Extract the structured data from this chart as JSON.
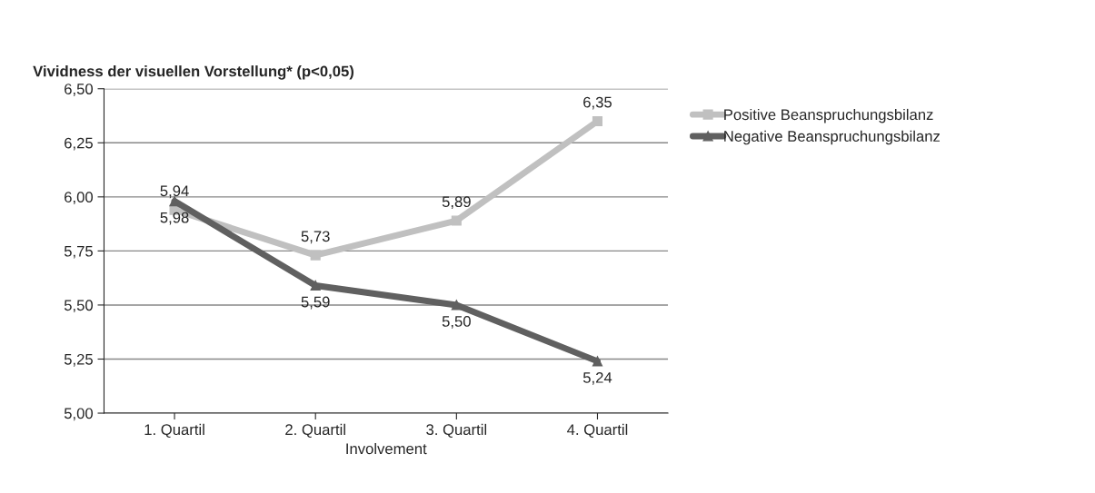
{
  "chart_data": {
    "type": "line",
    "title": "Vividness der visuellen Vorstellung* (p<0,05)",
    "xlabel": "Involvement",
    "categories": [
      "1. Quartil",
      "2. Quartil",
      "3. Quartil",
      "4. Quartil"
    ],
    "series": [
      {
        "name": "Positive Beanspruchungsbilanz",
        "color": "#c0c0c0",
        "marker": "square",
        "values": [
          5.94,
          5.73,
          5.89,
          6.35
        ],
        "value_labels": [
          "5,94",
          "5,73",
          "5,89",
          "6,35"
        ]
      },
      {
        "name": "Negative Beanspruchungsbilanz",
        "color": "#606060",
        "marker": "triangle",
        "values": [
          5.98,
          5.59,
          5.5,
          5.24
        ],
        "value_labels": [
          "5,98",
          "5,59",
          "5,50",
          "5,24"
        ]
      }
    ],
    "ylim": [
      5.0,
      6.5
    ],
    "yticks": [
      {
        "value": 5.0,
        "label": "5,00"
      },
      {
        "value": 5.25,
        "label": "5,25"
      },
      {
        "value": 5.5,
        "label": "5,50"
      },
      {
        "value": 5.75,
        "label": "5,75"
      },
      {
        "value": 6.0,
        "label": "6,00"
      },
      {
        "value": 6.25,
        "label": "6,25"
      },
      {
        "value": 6.5,
        "label": "6,50"
      }
    ],
    "grid": "y",
    "legend": "top right",
    "line_style": "solid"
  }
}
